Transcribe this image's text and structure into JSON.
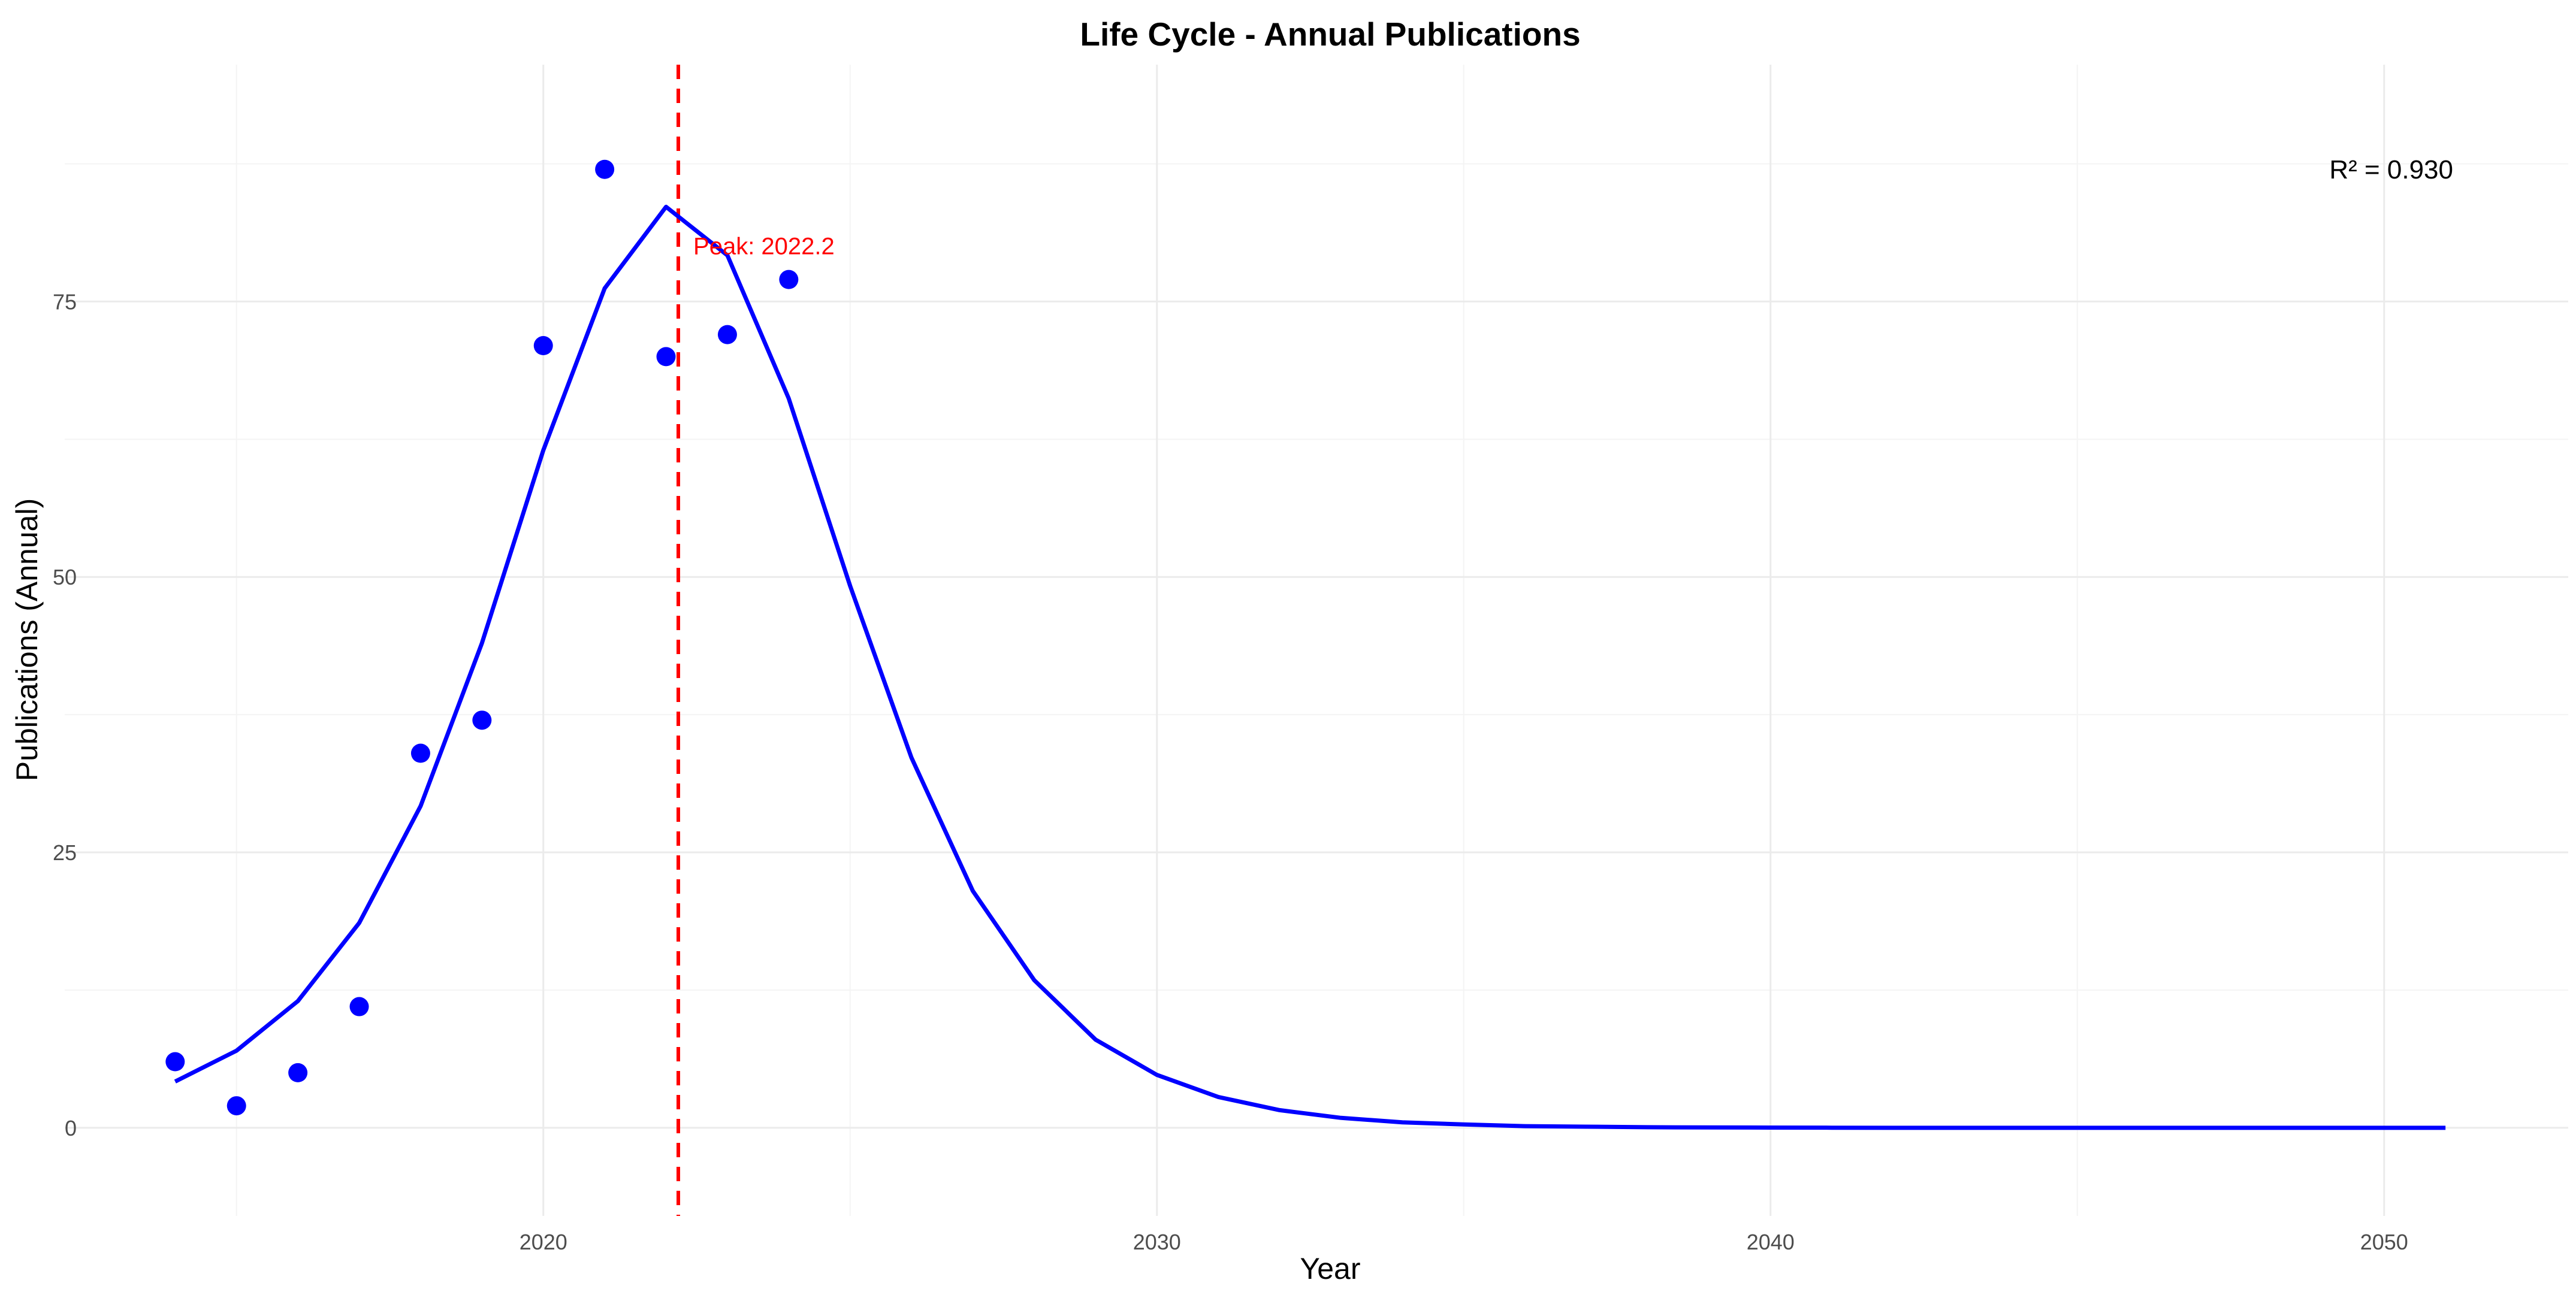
{
  "chart_data": {
    "type": "scatter",
    "title": "Life Cycle - Annual Publications",
    "xlabel": "Year",
    "ylabel": "Publications (Annual)",
    "xlim": [
      2012.2,
      2053
    ],
    "ylim": [
      -8,
      96.5
    ],
    "x_ticks": [
      2020,
      2030,
      2040,
      2050
    ],
    "y_ticks": [
      0,
      25,
      50,
      75
    ],
    "grid": true,
    "colors": {
      "points": "#0000ff",
      "fit": "#0000ff",
      "peak": "#ff0000",
      "grid": "#ebebeb"
    },
    "series": [
      {
        "kind": "points",
        "x": [
          2014,
          2015,
          2016,
          2017,
          2018,
          2019,
          2020,
          2021,
          2022,
          2023,
          2024
        ],
        "y": [
          6,
          2,
          5,
          11,
          34,
          37,
          71,
          87,
          70,
          72,
          77
        ]
      },
      {
        "kind": "line",
        "x": [
          2014,
          2015,
          2016,
          2017,
          2018,
          2019,
          2020,
          2021,
          2022,
          2023,
          2024,
          2025,
          2026,
          2027,
          2028,
          2029,
          2030,
          2031,
          2032,
          2033,
          2034,
          2035,
          2036,
          2037,
          2038,
          2039,
          2040,
          2041,
          2042,
          2043,
          2044,
          2045,
          2046,
          2047,
          2048,
          2049,
          2050,
          2051
        ],
        "y": [
          4.2,
          7,
          11.5,
          18.6,
          29.2,
          44,
          61.5,
          76.2,
          83.6,
          79.2,
          66.2,
          49.2,
          33.6,
          21.5,
          13.4,
          8.0,
          4.8,
          2.8,
          1.6,
          0.9,
          0.5,
          0.3,
          0.15,
          0.1,
          0.05,
          0.03,
          0.02,
          0.01,
          0,
          0,
          0,
          0,
          0,
          0,
          0,
          0,
          0,
          0
        ]
      }
    ],
    "peak": {
      "x": 2022.2,
      "label": "Peak: 2022.2"
    },
    "r_squared_label": "R² = 0.930"
  }
}
